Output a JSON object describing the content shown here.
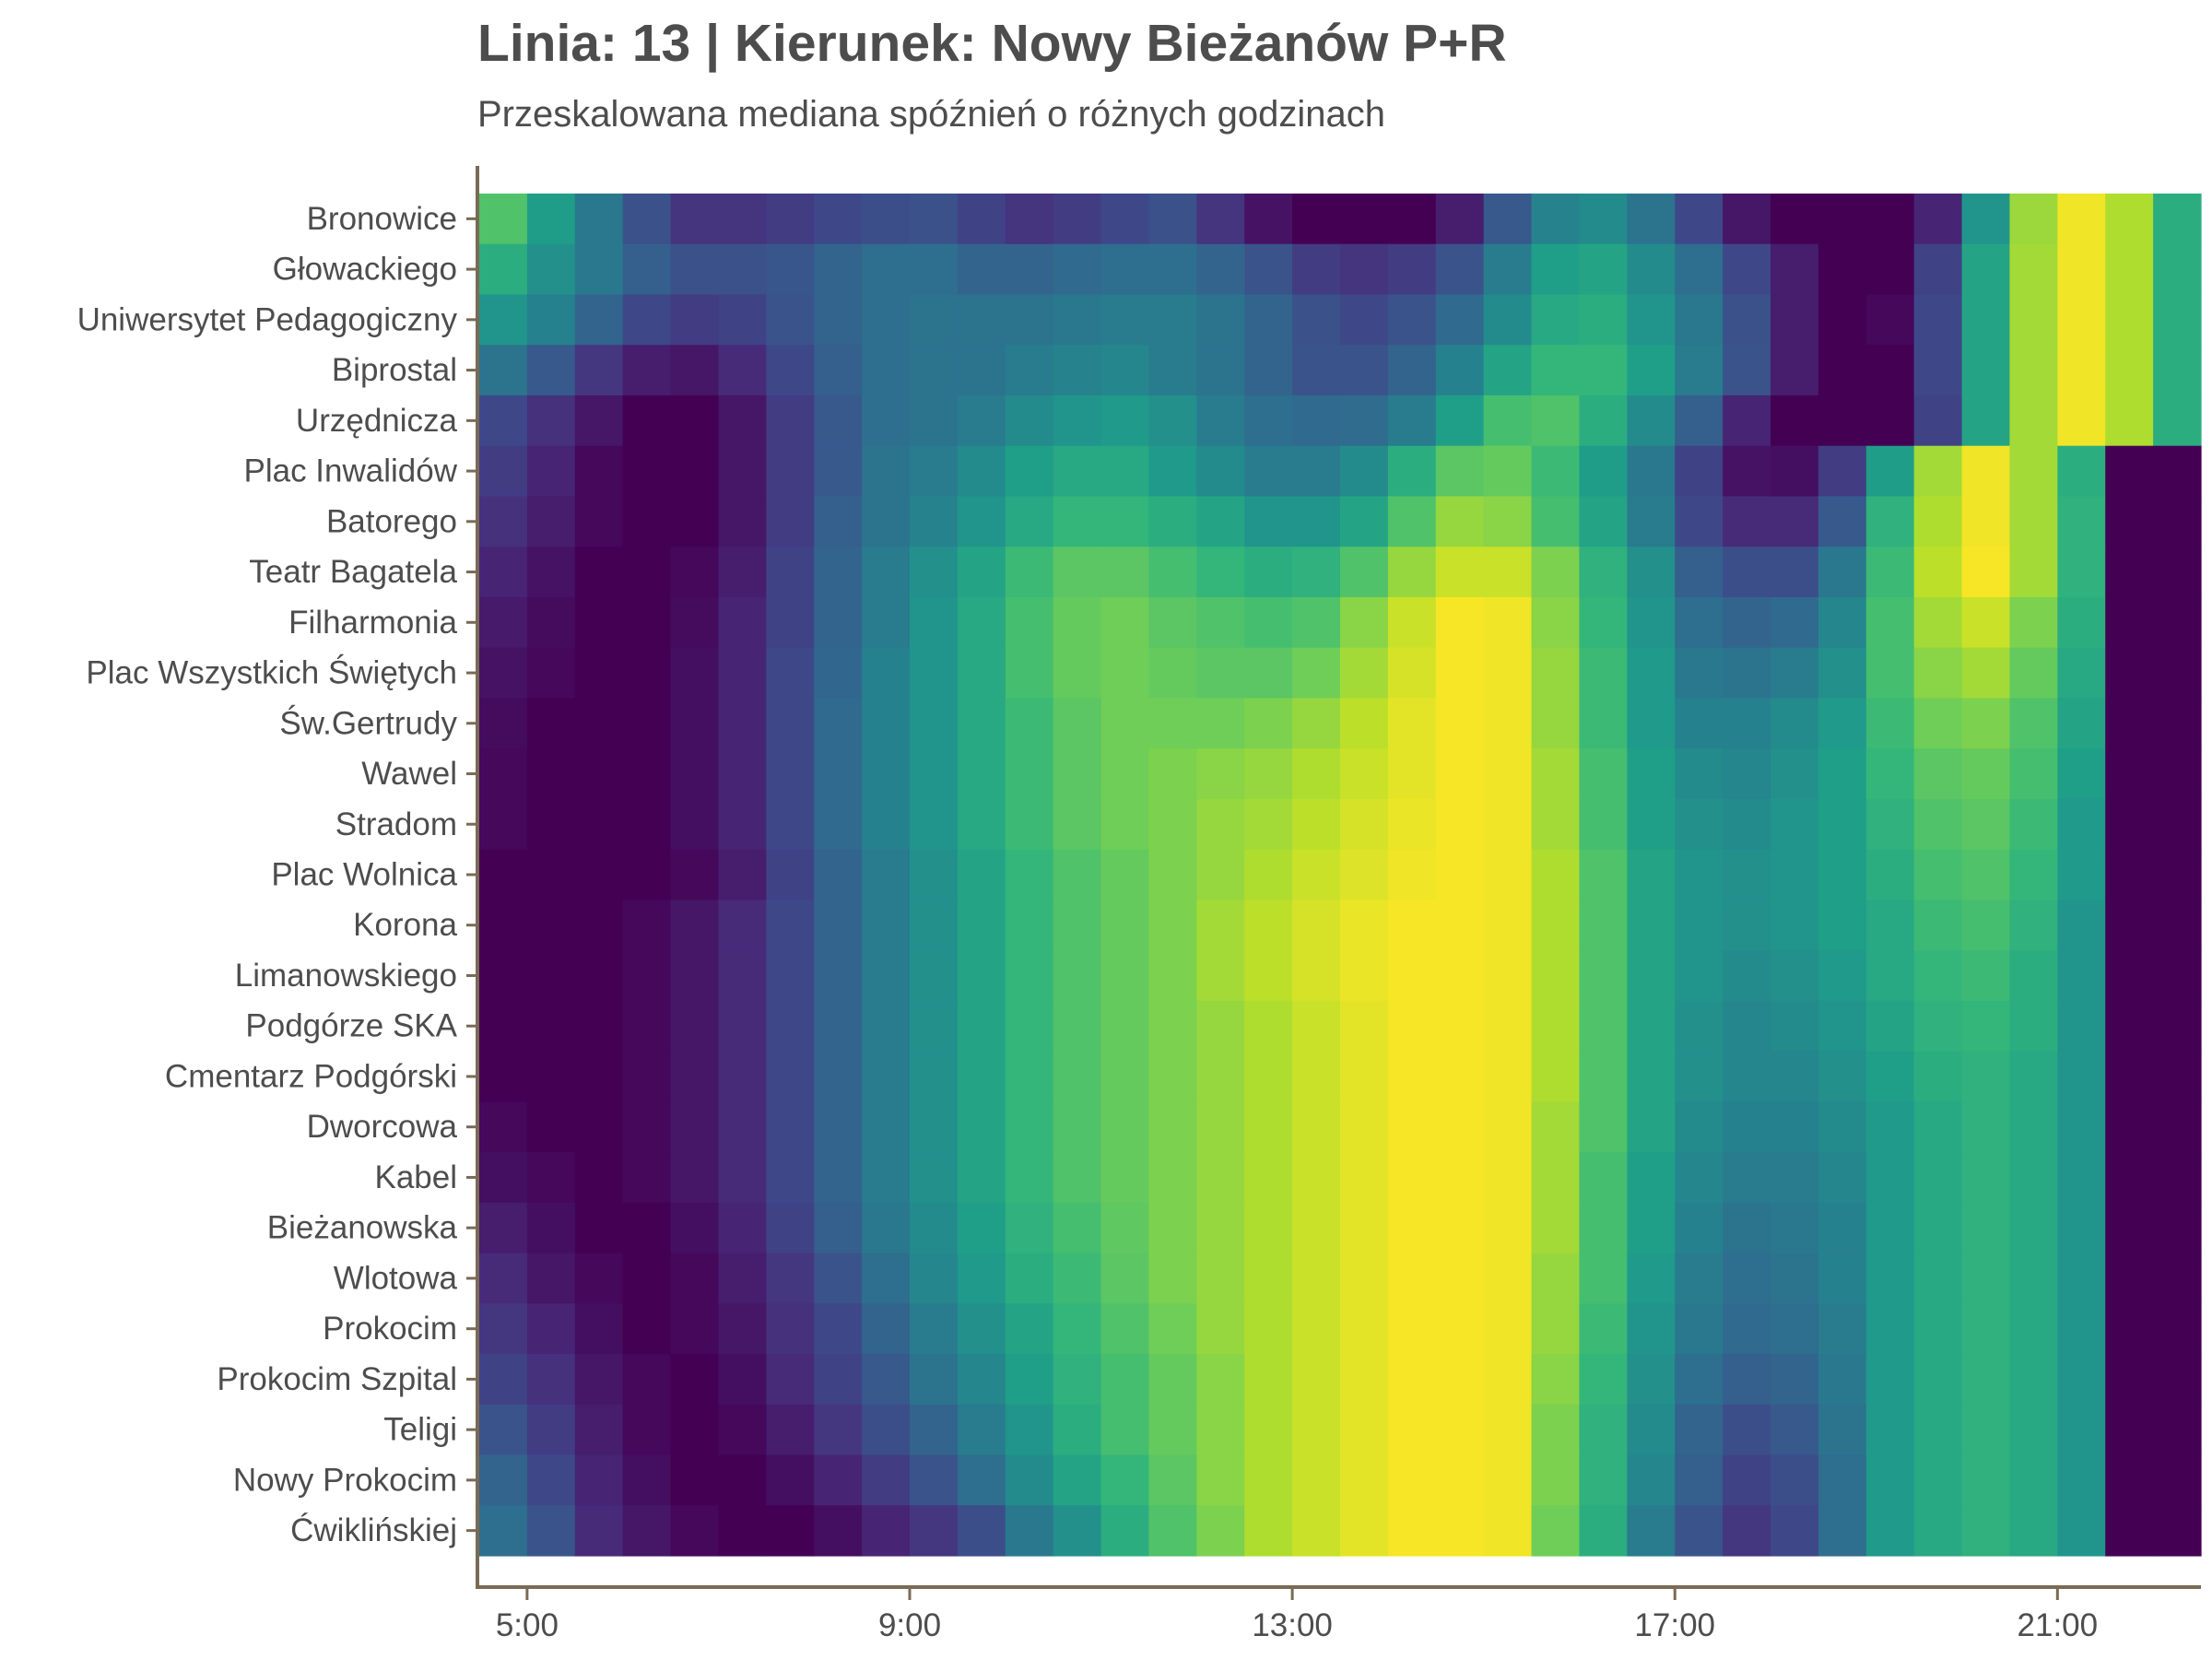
{
  "chart_data": {
    "type": "heatmap",
    "title": "Linia: 13 | Kierunek: Nowy Bieżanów P+R",
    "subtitle": "Przeskalowana mediana spóźnień o różnych godzinach",
    "x_ticks": [
      "5:00",
      "9:00",
      "13:00",
      "17:00",
      "21:00"
    ],
    "x_hours": [
      4.5,
      5,
      5.5,
      6,
      6.5,
      7,
      7.5,
      8,
      8.5,
      9,
      9.5,
      10,
      10.5,
      11,
      11.5,
      12,
      12.5,
      13,
      13.5,
      14,
      14.5,
      15,
      15.5,
      16,
      16.5,
      17,
      17.5,
      18,
      18.5,
      19,
      19.5,
      20,
      20.5,
      21,
      21.5,
      22,
      22.5,
      23
    ],
    "xlim": [
      4.5,
      22.5
    ],
    "stops": [
      "Bronowice",
      "Głowackiego",
      "Uniwersytet Pedagogiczny",
      "Biprostal",
      "Urzędnicza",
      "Plac Inwalidów",
      "Batorego",
      "Teatr Bagatela",
      "Filharmonia",
      "Plac Wszystkich Świętych",
      "Św.Gertrudy",
      "Wawel",
      "Stradom",
      "Plac Wolnica",
      "Korona",
      "Limanowskiego",
      "Podgórze SKA",
      "Cmentarz Podgórski",
      "Dworcowa",
      "Kabel",
      "Bieżanowska",
      "Wlotowa",
      "Prokocim",
      "Prokocim Szpital",
      "Teligi",
      "Nowy Prokocim",
      "Ćwiklińskiej"
    ],
    "colormap": [
      "#440154",
      "#482878",
      "#3e4989",
      "#31688e",
      "#26828e",
      "#1f9e89",
      "#35b779",
      "#6ece58",
      "#b5de2b",
      "#fde725"
    ],
    "values": [
      [
        0.72,
        0.55,
        0.4,
        0.25,
        0.15,
        0.15,
        0.18,
        0.22,
        0.24,
        0.25,
        0.2,
        0.15,
        0.18,
        0.22,
        0.25,
        0.15,
        0.05,
        0.0,
        0.0,
        0.0,
        0.08,
        0.28,
        0.45,
        0.48,
        0.38,
        0.22,
        0.06,
        0.0,
        0.0,
        0.0,
        0.1,
        0.52,
        0.85,
        0.98,
        0.88,
        0.62
      ],
      [
        0.62,
        0.5,
        0.4,
        0.3,
        0.25,
        0.25,
        0.27,
        0.32,
        0.36,
        0.36,
        0.32,
        0.32,
        0.34,
        0.36,
        0.36,
        0.32,
        0.26,
        0.18,
        0.15,
        0.18,
        0.26,
        0.42,
        0.56,
        0.58,
        0.48,
        0.36,
        0.22,
        0.08,
        0.0,
        0.0,
        0.2,
        0.58,
        0.86,
        0.98,
        0.88,
        0.62
      ],
      [
        0.52,
        0.44,
        0.32,
        0.22,
        0.18,
        0.2,
        0.26,
        0.32,
        0.36,
        0.38,
        0.38,
        0.38,
        0.4,
        0.42,
        0.42,
        0.38,
        0.32,
        0.25,
        0.22,
        0.26,
        0.34,
        0.48,
        0.6,
        0.62,
        0.52,
        0.4,
        0.25,
        0.08,
        0.0,
        0.02,
        0.22,
        0.58,
        0.86,
        0.98,
        0.88,
        0.62
      ],
      [
        0.38,
        0.28,
        0.16,
        0.08,
        0.06,
        0.12,
        0.22,
        0.3,
        0.36,
        0.38,
        0.38,
        0.42,
        0.45,
        0.46,
        0.42,
        0.38,
        0.32,
        0.26,
        0.26,
        0.32,
        0.44,
        0.58,
        0.66,
        0.66,
        0.56,
        0.42,
        0.26,
        0.08,
        0.0,
        0.0,
        0.22,
        0.58,
        0.86,
        0.98,
        0.88,
        0.62
      ],
      [
        0.22,
        0.14,
        0.06,
        0.0,
        0.0,
        0.06,
        0.18,
        0.28,
        0.36,
        0.38,
        0.42,
        0.48,
        0.52,
        0.54,
        0.5,
        0.42,
        0.36,
        0.34,
        0.35,
        0.42,
        0.56,
        0.7,
        0.72,
        0.62,
        0.48,
        0.3,
        0.1,
        0.0,
        0.0,
        0.0,
        0.2,
        0.58,
        0.86,
        0.98,
        0.88,
        0.62
      ],
      [
        0.18,
        0.1,
        0.02,
        0.0,
        0.0,
        0.06,
        0.18,
        0.28,
        0.38,
        0.42,
        0.48,
        0.56,
        0.6,
        0.6,
        0.54,
        0.48,
        0.42,
        0.42,
        0.48,
        0.62,
        0.74,
        0.76,
        0.68,
        0.55,
        0.4,
        0.2,
        0.05,
        0.04,
        0.18,
        0.55,
        0.86,
        0.98,
        0.86,
        0.62,
        0.0,
        0.0
      ],
      [
        0.14,
        0.08,
        0.02,
        0.0,
        0.0,
        0.06,
        0.18,
        0.3,
        0.38,
        0.45,
        0.52,
        0.6,
        0.66,
        0.66,
        0.62,
        0.58,
        0.52,
        0.52,
        0.58,
        0.72,
        0.84,
        0.82,
        0.7,
        0.58,
        0.42,
        0.22,
        0.12,
        0.12,
        0.28,
        0.64,
        0.88,
        0.98,
        0.86,
        0.64,
        0.0,
        0.0
      ],
      [
        0.1,
        0.05,
        0.0,
        0.0,
        0.02,
        0.08,
        0.2,
        0.32,
        0.42,
        0.5,
        0.58,
        0.68,
        0.74,
        0.74,
        0.7,
        0.66,
        0.62,
        0.64,
        0.72,
        0.84,
        0.92,
        0.92,
        0.8,
        0.64,
        0.5,
        0.3,
        0.24,
        0.24,
        0.4,
        0.68,
        0.9,
        0.99,
        0.86,
        0.64,
        0.0,
        0.0
      ],
      [
        0.07,
        0.03,
        0.0,
        0.0,
        0.03,
        0.1,
        0.2,
        0.32,
        0.42,
        0.52,
        0.6,
        0.7,
        0.76,
        0.78,
        0.74,
        0.72,
        0.7,
        0.72,
        0.82,
        0.92,
        0.99,
        0.98,
        0.82,
        0.66,
        0.52,
        0.36,
        0.32,
        0.34,
        0.46,
        0.7,
        0.86,
        0.92,
        0.8,
        0.62,
        0.0,
        0.0
      ],
      [
        0.05,
        0.02,
        0.0,
        0.0,
        0.04,
        0.1,
        0.22,
        0.33,
        0.44,
        0.52,
        0.6,
        0.7,
        0.76,
        0.78,
        0.76,
        0.74,
        0.74,
        0.78,
        0.86,
        0.94,
        0.99,
        0.98,
        0.84,
        0.68,
        0.54,
        0.4,
        0.38,
        0.42,
        0.5,
        0.7,
        0.82,
        0.86,
        0.76,
        0.6,
        0.0,
        0.0
      ],
      [
        0.03,
        0.0,
        0.0,
        0.0,
        0.04,
        0.1,
        0.22,
        0.34,
        0.44,
        0.52,
        0.6,
        0.68,
        0.74,
        0.78,
        0.78,
        0.78,
        0.8,
        0.84,
        0.9,
        0.96,
        0.99,
        0.98,
        0.84,
        0.68,
        0.54,
        0.44,
        0.44,
        0.48,
        0.54,
        0.68,
        0.78,
        0.8,
        0.72,
        0.58,
        0.0,
        0.0
      ],
      [
        0.02,
        0.0,
        0.0,
        0.0,
        0.04,
        0.1,
        0.22,
        0.34,
        0.44,
        0.52,
        0.6,
        0.68,
        0.74,
        0.78,
        0.8,
        0.82,
        0.84,
        0.88,
        0.92,
        0.96,
        0.99,
        0.98,
        0.86,
        0.7,
        0.56,
        0.48,
        0.46,
        0.5,
        0.56,
        0.66,
        0.74,
        0.76,
        0.7,
        0.56,
        0.0,
        0.0
      ],
      [
        0.02,
        0.0,
        0.0,
        0.0,
        0.04,
        0.1,
        0.22,
        0.34,
        0.44,
        0.52,
        0.6,
        0.68,
        0.74,
        0.78,
        0.8,
        0.84,
        0.86,
        0.9,
        0.94,
        0.97,
        0.99,
        0.98,
        0.86,
        0.7,
        0.56,
        0.5,
        0.48,
        0.52,
        0.56,
        0.64,
        0.72,
        0.74,
        0.68,
        0.54,
        0.0,
        0.0
      ],
      [
        0.0,
        0.0,
        0.0,
        0.0,
        0.02,
        0.08,
        0.2,
        0.32,
        0.42,
        0.5,
        0.58,
        0.66,
        0.72,
        0.76,
        0.8,
        0.84,
        0.88,
        0.92,
        0.95,
        0.98,
        0.99,
        0.98,
        0.88,
        0.72,
        0.58,
        0.52,
        0.5,
        0.52,
        0.56,
        0.62,
        0.7,
        0.72,
        0.66,
        0.54,
        0.0,
        0.0
      ],
      [
        0.0,
        0.0,
        0.0,
        0.02,
        0.06,
        0.12,
        0.22,
        0.32,
        0.42,
        0.5,
        0.58,
        0.66,
        0.72,
        0.76,
        0.8,
        0.86,
        0.9,
        0.94,
        0.97,
        0.99,
        0.99,
        0.98,
        0.88,
        0.72,
        0.58,
        0.52,
        0.5,
        0.52,
        0.56,
        0.6,
        0.68,
        0.7,
        0.64,
        0.52,
        0.0,
        0.0
      ],
      [
        0.0,
        0.0,
        0.0,
        0.02,
        0.06,
        0.12,
        0.22,
        0.32,
        0.42,
        0.5,
        0.58,
        0.66,
        0.72,
        0.76,
        0.8,
        0.86,
        0.9,
        0.94,
        0.97,
        0.99,
        0.99,
        0.98,
        0.88,
        0.72,
        0.58,
        0.52,
        0.48,
        0.5,
        0.54,
        0.6,
        0.66,
        0.68,
        0.62,
        0.52,
        0.0,
        0.0
      ],
      [
        0.0,
        0.0,
        0.0,
        0.02,
        0.06,
        0.12,
        0.22,
        0.32,
        0.42,
        0.5,
        0.58,
        0.66,
        0.72,
        0.76,
        0.8,
        0.84,
        0.88,
        0.92,
        0.96,
        0.99,
        0.99,
        0.98,
        0.88,
        0.72,
        0.58,
        0.5,
        0.46,
        0.48,
        0.52,
        0.58,
        0.64,
        0.66,
        0.62,
        0.52,
        0.0,
        0.0
      ],
      [
        0.0,
        0.0,
        0.0,
        0.02,
        0.06,
        0.12,
        0.22,
        0.32,
        0.42,
        0.5,
        0.58,
        0.66,
        0.72,
        0.76,
        0.8,
        0.84,
        0.88,
        0.92,
        0.96,
        0.99,
        0.99,
        0.98,
        0.88,
        0.72,
        0.58,
        0.5,
        0.46,
        0.46,
        0.5,
        0.56,
        0.62,
        0.64,
        0.6,
        0.52,
        0.0,
        0.0
      ],
      [
        0.02,
        0.0,
        0.0,
        0.02,
        0.06,
        0.12,
        0.22,
        0.32,
        0.42,
        0.5,
        0.58,
        0.66,
        0.72,
        0.76,
        0.8,
        0.84,
        0.88,
        0.92,
        0.96,
        0.99,
        0.99,
        0.98,
        0.86,
        0.72,
        0.58,
        0.48,
        0.44,
        0.44,
        0.48,
        0.54,
        0.6,
        0.64,
        0.6,
        0.52,
        0.0,
        0.0
      ],
      [
        0.04,
        0.02,
        0.0,
        0.02,
        0.06,
        0.12,
        0.22,
        0.32,
        0.42,
        0.5,
        0.58,
        0.66,
        0.72,
        0.76,
        0.8,
        0.84,
        0.88,
        0.92,
        0.96,
        0.99,
        0.99,
        0.98,
        0.86,
        0.7,
        0.56,
        0.46,
        0.42,
        0.42,
        0.46,
        0.54,
        0.6,
        0.64,
        0.6,
        0.52,
        0.0,
        0.0
      ],
      [
        0.08,
        0.04,
        0.0,
        0.0,
        0.04,
        0.1,
        0.2,
        0.3,
        0.4,
        0.48,
        0.56,
        0.64,
        0.7,
        0.75,
        0.8,
        0.84,
        0.88,
        0.92,
        0.96,
        0.99,
        0.99,
        0.98,
        0.86,
        0.7,
        0.56,
        0.44,
        0.38,
        0.4,
        0.44,
        0.54,
        0.6,
        0.64,
        0.6,
        0.52,
        0.0,
        0.0
      ],
      [
        0.12,
        0.06,
        0.02,
        0.0,
        0.02,
        0.08,
        0.16,
        0.26,
        0.36,
        0.46,
        0.54,
        0.62,
        0.68,
        0.74,
        0.8,
        0.84,
        0.88,
        0.92,
        0.96,
        0.99,
        0.99,
        0.98,
        0.84,
        0.7,
        0.54,
        0.42,
        0.36,
        0.38,
        0.44,
        0.54,
        0.6,
        0.64,
        0.6,
        0.52,
        0.0,
        0.0
      ],
      [
        0.16,
        0.1,
        0.04,
        0.0,
        0.02,
        0.06,
        0.14,
        0.22,
        0.32,
        0.42,
        0.5,
        0.58,
        0.66,
        0.72,
        0.78,
        0.84,
        0.88,
        0.92,
        0.96,
        0.99,
        0.99,
        0.98,
        0.84,
        0.68,
        0.52,
        0.4,
        0.34,
        0.36,
        0.42,
        0.54,
        0.6,
        0.64,
        0.6,
        0.52,
        0.0,
        0.0
      ],
      [
        0.2,
        0.14,
        0.06,
        0.02,
        0.0,
        0.04,
        0.12,
        0.2,
        0.28,
        0.38,
        0.46,
        0.56,
        0.64,
        0.7,
        0.76,
        0.82,
        0.88,
        0.92,
        0.96,
        0.99,
        0.99,
        0.98,
        0.82,
        0.66,
        0.5,
        0.36,
        0.3,
        0.32,
        0.4,
        0.54,
        0.6,
        0.64,
        0.6,
        0.52,
        0.0,
        0.0
      ],
      [
        0.26,
        0.18,
        0.08,
        0.02,
        0.0,
        0.02,
        0.08,
        0.16,
        0.24,
        0.32,
        0.42,
        0.52,
        0.62,
        0.7,
        0.76,
        0.82,
        0.88,
        0.92,
        0.96,
        0.99,
        0.99,
        0.98,
        0.8,
        0.64,
        0.48,
        0.32,
        0.24,
        0.28,
        0.38,
        0.54,
        0.6,
        0.64,
        0.6,
        0.52,
        0.0,
        0.0
      ],
      [
        0.32,
        0.22,
        0.1,
        0.04,
        0.0,
        0.0,
        0.04,
        0.1,
        0.18,
        0.26,
        0.36,
        0.48,
        0.58,
        0.66,
        0.74,
        0.82,
        0.88,
        0.92,
        0.96,
        0.99,
        0.99,
        0.98,
        0.8,
        0.64,
        0.46,
        0.3,
        0.2,
        0.24,
        0.36,
        0.54,
        0.6,
        0.64,
        0.6,
        0.52,
        0.0,
        0.0
      ],
      [
        0.36,
        0.26,
        0.12,
        0.06,
        0.02,
        0.0,
        0.0,
        0.04,
        0.1,
        0.16,
        0.24,
        0.4,
        0.5,
        0.62,
        0.72,
        0.8,
        0.88,
        0.92,
        0.96,
        0.99,
        0.99,
        0.98,
        0.78,
        0.62,
        0.42,
        0.26,
        0.16,
        0.22,
        0.36,
        0.54,
        0.6,
        0.64,
        0.6,
        0.52,
        0.0,
        0.0
      ]
    ]
  }
}
